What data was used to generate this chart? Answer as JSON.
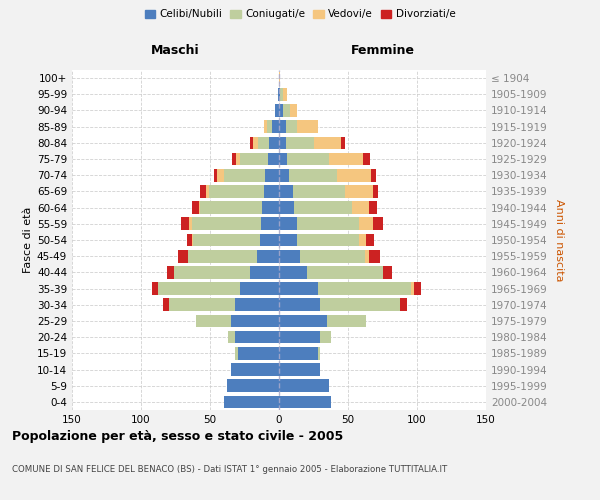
{
  "age_groups": [
    "0-4",
    "5-9",
    "10-14",
    "15-19",
    "20-24",
    "25-29",
    "30-34",
    "35-39",
    "40-44",
    "45-49",
    "50-54",
    "55-59",
    "60-64",
    "65-69",
    "70-74",
    "75-79",
    "80-84",
    "85-89",
    "90-94",
    "95-99",
    "100+"
  ],
  "birth_years": [
    "2000-2004",
    "1995-1999",
    "1990-1994",
    "1985-1989",
    "1980-1984",
    "1975-1979",
    "1970-1974",
    "1965-1969",
    "1960-1964",
    "1955-1959",
    "1950-1954",
    "1945-1949",
    "1940-1944",
    "1935-1939",
    "1930-1934",
    "1925-1929",
    "1920-1924",
    "1915-1919",
    "1910-1914",
    "1905-1909",
    "≤ 1904"
  ],
  "males": {
    "celibe": [
      40,
      38,
      35,
      30,
      32,
      35,
      32,
      28,
      21,
      16,
      14,
      13,
      12,
      11,
      10,
      8,
      7,
      5,
      3,
      1,
      0
    ],
    "coniugato": [
      0,
      0,
      0,
      2,
      5,
      25,
      48,
      60,
      55,
      50,
      48,
      50,
      45,
      40,
      30,
      20,
      8,
      4,
      0,
      0,
      0
    ],
    "vedovo": [
      0,
      0,
      0,
      0,
      0,
      0,
      0,
      0,
      0,
      0,
      1,
      2,
      1,
      2,
      5,
      3,
      4,
      2,
      0,
      0,
      0
    ],
    "divorziato": [
      0,
      0,
      0,
      0,
      0,
      0,
      4,
      4,
      5,
      7,
      4,
      6,
      5,
      4,
      2,
      3,
      2,
      0,
      0,
      0,
      0
    ]
  },
  "females": {
    "nubile": [
      38,
      36,
      30,
      28,
      30,
      35,
      30,
      28,
      20,
      15,
      13,
      13,
      11,
      10,
      7,
      6,
      5,
      5,
      3,
      1,
      0
    ],
    "coniugata": [
      0,
      0,
      0,
      2,
      8,
      28,
      58,
      68,
      55,
      47,
      45,
      45,
      42,
      38,
      35,
      30,
      20,
      8,
      5,
      2,
      0
    ],
    "vedova": [
      0,
      0,
      0,
      0,
      0,
      0,
      0,
      2,
      0,
      3,
      5,
      10,
      12,
      20,
      25,
      25,
      20,
      15,
      5,
      3,
      1
    ],
    "divorziata": [
      0,
      0,
      0,
      0,
      0,
      0,
      5,
      5,
      7,
      8,
      6,
      7,
      6,
      4,
      3,
      5,
      3,
      0,
      0,
      0,
      0
    ]
  },
  "colors": {
    "celibe": "#4D7EBE",
    "coniugato": "#BFCE9E",
    "vedovo": "#F5C67F",
    "divorziato": "#CC2222"
  },
  "xlim": 150,
  "title": "Popolazione per età, sesso e stato civile - 2005",
  "subtitle": "COMUNE DI SAN FELICE DEL BENACO (BS) - Dati ISTAT 1° gennaio 2005 - Elaborazione TUTTITALIA.IT",
  "ylabel_left": "Fasce di età",
  "ylabel_right": "Anni di nascita",
  "xlabel_left": "Maschi",
  "xlabel_right": "Femmine",
  "legend_labels": [
    "Celibi/Nubili",
    "Coniugati/e",
    "Vedovi/e",
    "Divorziati/e"
  ],
  "bg_color": "#f2f2f2",
  "plot_bg": "#ffffff",
  "grid_color": "#cccccc"
}
